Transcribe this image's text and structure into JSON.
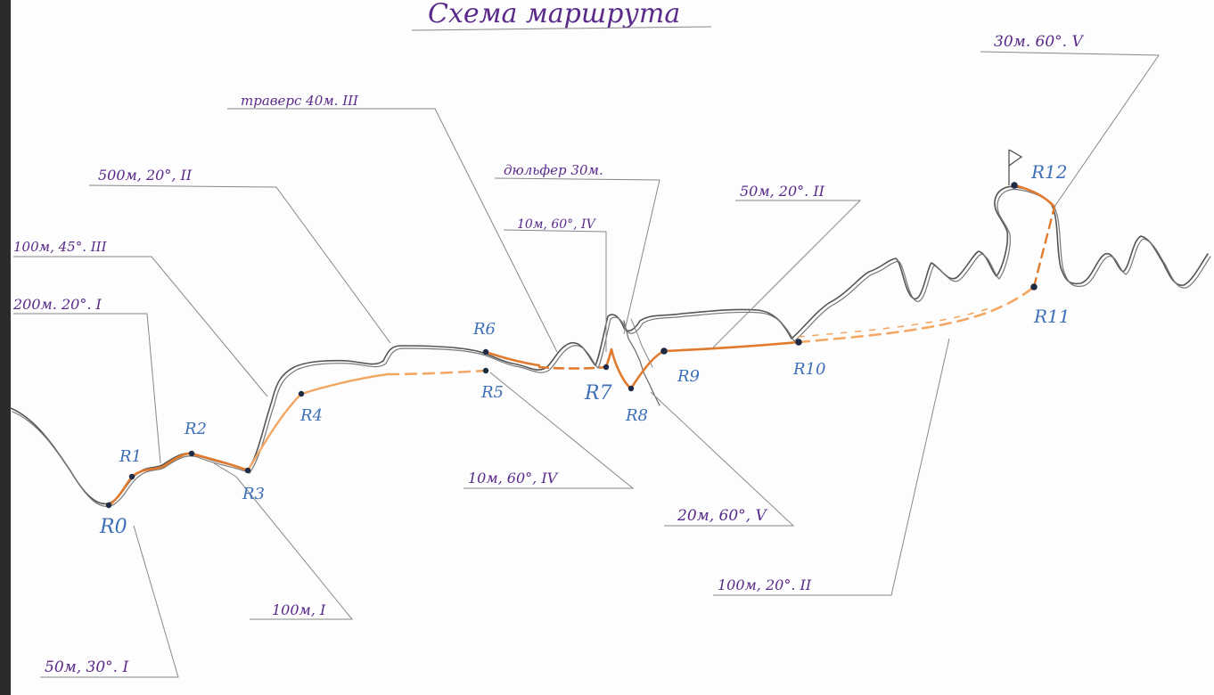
{
  "title": "Схема маршрута",
  "colors": {
    "ridge": "#555555",
    "route": "#e07a2e",
    "route_light": "#f2a864",
    "leader": "#888888",
    "text": "#5a2a8a",
    "points": "#3d6fb8",
    "dot": "#1f2a44"
  },
  "annotations": [
    {
      "id": "a1",
      "text": "30м. 60°. V"
    },
    {
      "id": "a2",
      "text": "траверс 40м. III"
    },
    {
      "id": "a3",
      "text": "500м, 20°, II"
    },
    {
      "id": "a4",
      "text": "дюльфер 30м."
    },
    {
      "id": "a5",
      "text": "10м, 60°, IV"
    },
    {
      "id": "a6",
      "text": "50м, 20°. II"
    },
    {
      "id": "a7",
      "text": "100м, 45°. III"
    },
    {
      "id": "a8",
      "text": "200м. 20°. I"
    },
    {
      "id": "a9",
      "text": "10м, 60°, IV"
    },
    {
      "id": "a10",
      "text": "20м, 60°, V"
    },
    {
      "id": "a11",
      "text": "100м, 20°. II"
    },
    {
      "id": "a12",
      "text": "100м, I"
    },
    {
      "id": "a13",
      "text": "50м, 30°. I"
    }
  ],
  "points": [
    {
      "id": "R0",
      "label": "R0"
    },
    {
      "id": "R1",
      "label": "R1"
    },
    {
      "id": "R2",
      "label": "R2"
    },
    {
      "id": "R3",
      "label": "R3"
    },
    {
      "id": "R4",
      "label": "R4"
    },
    {
      "id": "R5",
      "label": "R5"
    },
    {
      "id": "R6",
      "label": "R6"
    },
    {
      "id": "R7",
      "label": "R7"
    },
    {
      "id": "R8",
      "label": "R8"
    },
    {
      "id": "R9",
      "label": "R9"
    },
    {
      "id": "R10",
      "label": "R10"
    },
    {
      "id": "R11",
      "label": "R11"
    },
    {
      "id": "R12",
      "label": "R12"
    }
  ]
}
